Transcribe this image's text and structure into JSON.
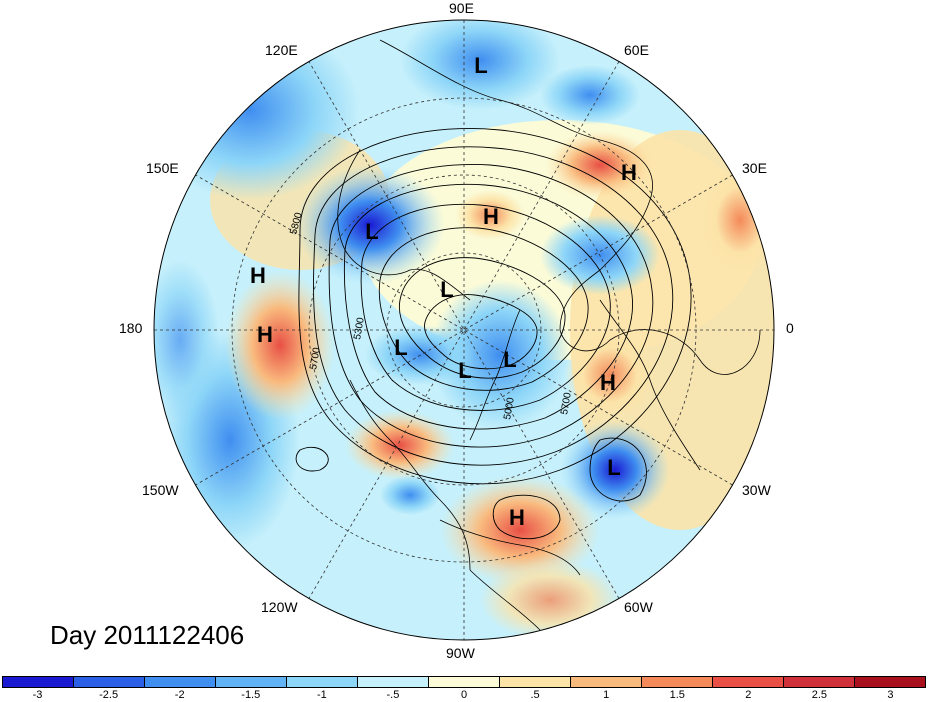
{
  "map": {
    "title": "Day 2011122406",
    "longitude_labels": [
      {
        "text": "90E",
        "key": "lon_90e"
      },
      {
        "text": "60E",
        "key": "lon_60e"
      },
      {
        "text": "120E",
        "key": "lon_120e"
      },
      {
        "text": "30E",
        "key": "lon_30e"
      },
      {
        "text": "150E",
        "key": "lon_150e"
      },
      {
        "text": "180",
        "key": "lon_180"
      },
      {
        "text": "0",
        "key": "lon_0"
      },
      {
        "text": "150W",
        "key": "lon_150w"
      },
      {
        "text": "30W",
        "key": "lon_30w"
      },
      {
        "text": "120W",
        "key": "lon_120w"
      },
      {
        "text": "60W",
        "key": "lon_60w"
      },
      {
        "text": "90W",
        "key": "lon_90w"
      }
    ],
    "pressure_systems": [
      {
        "type": "L"
      },
      {
        "type": "H"
      },
      {
        "type": "H"
      },
      {
        "type": "L"
      },
      {
        "type": "H"
      },
      {
        "type": "L"
      },
      {
        "type": "H"
      },
      {
        "type": "L"
      },
      {
        "type": "L"
      },
      {
        "type": "L"
      },
      {
        "type": "H"
      },
      {
        "type": "L"
      },
      {
        "type": "H"
      }
    ],
    "contour_labels": [
      "5800",
      "5300",
      "5700",
      "5700",
      "5000"
    ]
  },
  "colorbar": {
    "colors": [
      "#1a1ad2",
      "#2a5fe6",
      "#3f8ef0",
      "#62b3f5",
      "#8ed6f8",
      "#c6f0fb",
      "#fbfbd8",
      "#fce3a8",
      "#f9ba7e",
      "#f48a5a",
      "#e85045",
      "#d0303a",
      "#a8101e"
    ],
    "tick_labels": [
      "-3",
      "-2.5",
      "-2",
      "-1.5",
      "-1",
      "-.5",
      "0",
      ".5",
      "1",
      "1.5",
      "2",
      "2.5",
      "3"
    ]
  }
}
